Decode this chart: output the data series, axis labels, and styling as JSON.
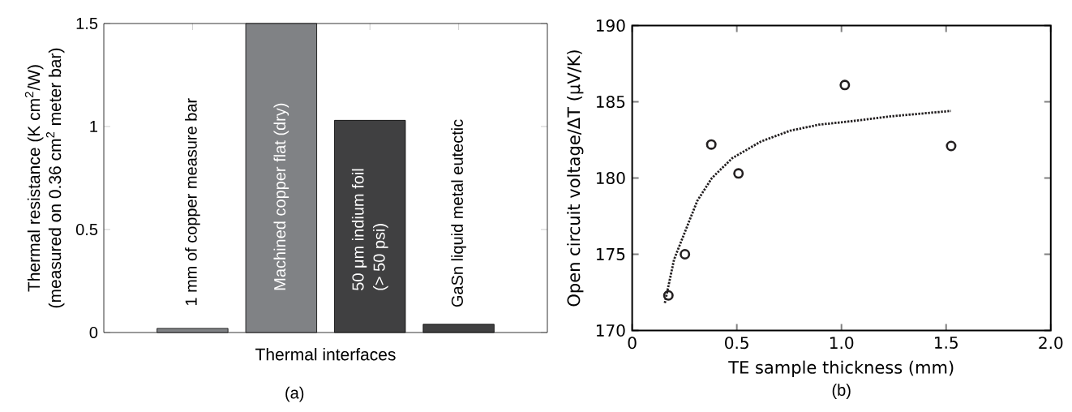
{
  "chart_data": [
    {
      "type": "bar",
      "categories": [
        null,
        null,
        null,
        null
      ],
      "values": [
        0.02,
        1.5,
        1.03,
        0.04
      ],
      "colors": [
        "#808285",
        "#808285",
        "#404041",
        "#404041"
      ],
      "ylim": [
        0,
        1.5
      ],
      "yticks": [
        0,
        0.5,
        1,
        1.5
      ],
      "tick_labels": "y",
      "xlabel": "Thermal interfaces",
      "ylabel": "Thermal resistance (K cm$^{2}$/W)",
      "annotations": [
        "1 mm of copper measure bar",
        "Machined copper flat (dry)",
        "50 μm indium foil",
        "(> 50 psi)",
        "GaSn liquid metal eutectic",
        "(measured on 0.36 cm$^{2}$ meter bar)",
        "(a)"
      ]
    },
    {
      "type": "scatter",
      "xlim": [
        0,
        2
      ],
      "ylim": [
        170,
        190
      ],
      "xticks": [
        0,
        0.5,
        {
          "value": 1,
          "label": "1.0"
        },
        1.5,
        {
          "value": 2,
          "label": "2.0"
        }
      ],
      "yticks": [
        170,
        175,
        180,
        185,
        190
      ],
      "xlabel": "TE sample thickness (mm)",
      "ylabel": "Open circuit voltage/ΔT (μV/K)",
      "series": [
        {
          "type": "scatter",
          "color": "#231f20",
          "marker": "circle",
          "x": [
            0.173,
            0.252,
            0.378,
            0.508,
            1.016,
            1.524
          ],
          "values": [
            172.3,
            175.0,
            182.2,
            180.3,
            186.1,
            182.1
          ]
        },
        {
          "type": "line",
          "color": "#231f20",
          "line_style": "dotted",
          "x": [
            0.156,
            0.2,
            0.256,
            0.311,
            0.381,
            0.478,
            0.616,
            0.754,
            0.893,
            1.031,
            1.239,
            1.524
          ],
          "values": [
            171.8,
            174.65,
            176.6,
            178.5,
            180.0,
            181.3,
            182.4,
            183.1,
            183.5,
            183.7,
            184.05,
            184.4
          ]
        }
      ],
      "annotations": [
        "(b)"
      ]
    }
  ]
}
